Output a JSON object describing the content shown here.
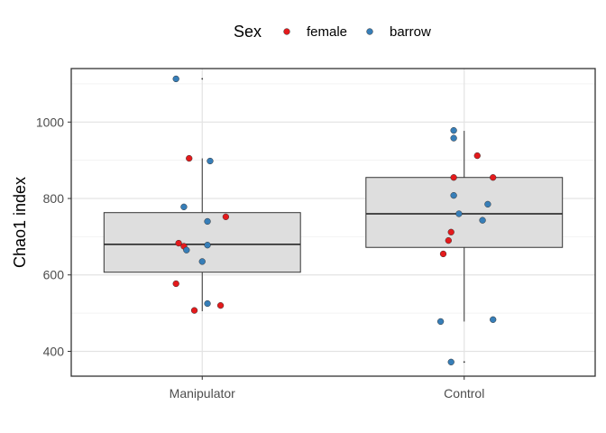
{
  "chart_data": {
    "type": "box",
    "title": "",
    "xlabel": "",
    "ylabel": "Chao1 index",
    "ylim": [
      335,
      1140
    ],
    "yticks": [
      400,
      600,
      800,
      1000
    ],
    "grid": true,
    "legend": {
      "title": "Sex",
      "position": "top",
      "entries": [
        {
          "name": "female",
          "color": "#e41a1c"
        },
        {
          "name": "barrow",
          "color": "#377eb8"
        }
      ]
    },
    "categories": [
      "Manipulator",
      "Control"
    ],
    "boxes": [
      {
        "category": "Manipulator",
        "q1": 607,
        "median": 680,
        "q3": 763,
        "whisker_low": 505,
        "whisker_high": 905,
        "outliers": [
          1113
        ]
      },
      {
        "category": "Control",
        "q1": 672,
        "median": 760,
        "q3": 855,
        "whisker_low": 478,
        "whisker_high": 977,
        "outliers": [
          372
        ]
      }
    ],
    "series": [
      {
        "name": "female",
        "color": "#e41a1c",
        "points": [
          {
            "category": "Manipulator",
            "jitter": -0.05,
            "y": 905
          },
          {
            "category": "Manipulator",
            "jitter": 0.09,
            "y": 752
          },
          {
            "category": "Manipulator",
            "jitter": -0.09,
            "y": 683
          },
          {
            "category": "Manipulator",
            "jitter": -0.07,
            "y": 675
          },
          {
            "category": "Manipulator",
            "jitter": -0.1,
            "y": 577
          },
          {
            "category": "Manipulator",
            "jitter": -0.03,
            "y": 507
          },
          {
            "category": "Manipulator",
            "jitter": 0.07,
            "y": 520
          },
          {
            "category": "Control",
            "jitter": -0.04,
            "y": 855
          },
          {
            "category": "Control",
            "jitter": 0.05,
            "y": 912
          },
          {
            "category": "Control",
            "jitter": 0.11,
            "y": 855
          },
          {
            "category": "Control",
            "jitter": -0.05,
            "y": 712
          },
          {
            "category": "Control",
            "jitter": -0.06,
            "y": 690
          },
          {
            "category": "Control",
            "jitter": -0.08,
            "y": 655
          }
        ]
      },
      {
        "name": "barrow",
        "color": "#377eb8",
        "points": [
          {
            "category": "Manipulator",
            "jitter": -0.1,
            "y": 1113
          },
          {
            "category": "Manipulator",
            "jitter": 0.03,
            "y": 898
          },
          {
            "category": "Manipulator",
            "jitter": -0.07,
            "y": 778
          },
          {
            "category": "Manipulator",
            "jitter": 0.02,
            "y": 740
          },
          {
            "category": "Manipulator",
            "jitter": 0.02,
            "y": 678
          },
          {
            "category": "Manipulator",
            "jitter": -0.06,
            "y": 665
          },
          {
            "category": "Manipulator",
            "jitter": 0.0,
            "y": 635
          },
          {
            "category": "Manipulator",
            "jitter": 0.02,
            "y": 525
          },
          {
            "category": "Control",
            "jitter": -0.04,
            "y": 808
          },
          {
            "category": "Control",
            "jitter": -0.02,
            "y": 760
          },
          {
            "category": "Control",
            "jitter": 0.09,
            "y": 785
          },
          {
            "category": "Control",
            "jitter": 0.07,
            "y": 743
          },
          {
            "category": "Control",
            "jitter": -0.04,
            "y": 978
          },
          {
            "category": "Control",
            "jitter": -0.04,
            "y": 958
          },
          {
            "category": "Control",
            "jitter": -0.09,
            "y": 478
          },
          {
            "category": "Control",
            "jitter": 0.11,
            "y": 483
          },
          {
            "category": "Control",
            "jitter": -0.05,
            "y": 372
          }
        ]
      }
    ]
  }
}
